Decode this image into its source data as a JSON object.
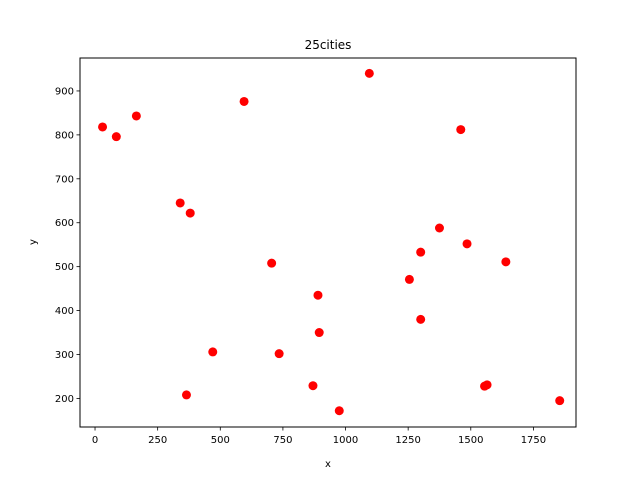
{
  "chart_data": {
    "type": "scatter",
    "title": "25cities",
    "xlabel": "x",
    "ylabel": "y",
    "xlim": [
      -60,
      1920
    ],
    "ylim": [
      135,
      975
    ],
    "xticks": [
      0,
      250,
      500,
      750,
      1000,
      1250,
      1500,
      1750
    ],
    "yticks": [
      200,
      300,
      400,
      500,
      600,
      700,
      800,
      900
    ],
    "grid": false,
    "marker_color": "#ff0000",
    "points": [
      {
        "x": 30,
        "y": 818
      },
      {
        "x": 85,
        "y": 796
      },
      {
        "x": 165,
        "y": 843
      },
      {
        "x": 340,
        "y": 645
      },
      {
        "x": 380,
        "y": 622
      },
      {
        "x": 595,
        "y": 876
      },
      {
        "x": 1095,
        "y": 940
      },
      {
        "x": 1460,
        "y": 812
      },
      {
        "x": 705,
        "y": 508
      },
      {
        "x": 1300,
        "y": 533
      },
      {
        "x": 1375,
        "y": 588
      },
      {
        "x": 1485,
        "y": 552
      },
      {
        "x": 1640,
        "y": 511
      },
      {
        "x": 1255,
        "y": 471
      },
      {
        "x": 890,
        "y": 435
      },
      {
        "x": 895,
        "y": 350
      },
      {
        "x": 1300,
        "y": 380
      },
      {
        "x": 470,
        "y": 306
      },
      {
        "x": 735,
        "y": 302
      },
      {
        "x": 365,
        "y": 208
      },
      {
        "x": 870,
        "y": 229
      },
      {
        "x": 975,
        "y": 172
      },
      {
        "x": 1555,
        "y": 228
      },
      {
        "x": 1565,
        "y": 231
      },
      {
        "x": 1855,
        "y": 195
      }
    ]
  }
}
